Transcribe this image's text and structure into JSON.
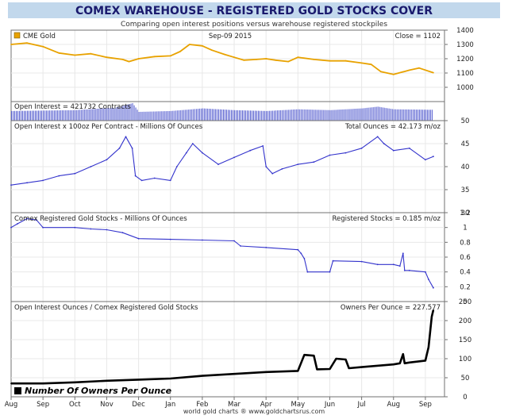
{
  "title": "COMEX WAREHOUSE - REGISTERED GOLD STOCKS COVER",
  "subtitle": "Comparing open interest positions versus warehouse registered stockpiles",
  "footer": "world gold charts ® www.goldchartsrus.com",
  "x_axis": {
    "labels": [
      "Aug",
      "Sep",
      "Oct",
      "Nov",
      "Dec",
      "Jan",
      "Feb",
      "Mar",
      "Apr",
      "May",
      "Jun",
      "Jul",
      "Aug",
      "Sep"
    ]
  },
  "colors": {
    "title_bar": "#c2d8ec",
    "title_text": "#1a1a6e",
    "gold_line": "#e8a200",
    "oi_bars": "#3a44c8",
    "blue_line": "#3333cc",
    "owners_line": "#000000",
    "grid": "#e8e8e8",
    "frame": "#707070"
  },
  "chart_data": [
    {
      "id": "gold",
      "type": "line",
      "legend": "CME Gold",
      "date_label": "Sep-09 2015",
      "readout": "Close = 1102",
      "ylim": [
        900,
        1400
      ],
      "yticks": [
        1000,
        1100,
        1200,
        1300,
        1400
      ],
      "y_tick_labels": [
        "1000",
        "1100",
        "1200",
        "1300",
        "1400"
      ],
      "x": [
        "Aug",
        "Sep",
        "Oct",
        "Nov",
        "Dec",
        "Jan",
        "Feb",
        "Mar",
        "Apr",
        "May",
        "Jun",
        "Jul",
        "Aug",
        "Sep"
      ],
      "points": [
        [
          0,
          1300
        ],
        [
          0.5,
          1310
        ],
        [
          1,
          1285
        ],
        [
          1.5,
          1240
        ],
        [
          2,
          1225
        ],
        [
          2.5,
          1235
        ],
        [
          3,
          1210
        ],
        [
          3.5,
          1195
        ],
        [
          3.7,
          1180
        ],
        [
          4,
          1200
        ],
        [
          4.5,
          1215
        ],
        [
          5,
          1220
        ],
        [
          5.3,
          1250
        ],
        [
          5.6,
          1300
        ],
        [
          6,
          1290
        ],
        [
          6.3,
          1260
        ],
        [
          6.7,
          1230
        ],
        [
          7,
          1210
        ],
        [
          7.3,
          1190
        ],
        [
          7.7,
          1195
        ],
        [
          8,
          1200
        ],
        [
          8.3,
          1190
        ],
        [
          8.7,
          1180
        ],
        [
          9,
          1210
        ],
        [
          9.5,
          1195
        ],
        [
          10,
          1185
        ],
        [
          10.5,
          1185
        ],
        [
          11,
          1170
        ],
        [
          11.3,
          1160
        ],
        [
          11.6,
          1110
        ],
        [
          12,
          1090
        ],
        [
          12.5,
          1120
        ],
        [
          12.8,
          1135
        ],
        [
          13.25,
          1102
        ]
      ]
    },
    {
      "id": "open_interest",
      "type": "bar",
      "readout": "Open Interest = 421732 Contracts",
      "x": [
        "Aug",
        "Sep",
        "Oct",
        "Nov",
        "Dec",
        "Jan",
        "Feb",
        "Mar",
        "Apr",
        "May",
        "Jun",
        "Jul",
        "Aug",
        "Sep"
      ],
      "points": [
        [
          0,
          0.55
        ],
        [
          2,
          0.6
        ],
        [
          3.3,
          0.75
        ],
        [
          3.8,
          1.0
        ],
        [
          4,
          0.5
        ],
        [
          5,
          0.55
        ],
        [
          6,
          0.7
        ],
        [
          7,
          0.6
        ],
        [
          8,
          0.55
        ],
        [
          9,
          0.65
        ],
        [
          10,
          0.6
        ],
        [
          11,
          0.7
        ],
        [
          11.5,
          0.8
        ],
        [
          12,
          0.65
        ],
        [
          13.25,
          0.62
        ]
      ]
    },
    {
      "id": "oi_ounces",
      "type": "line",
      "readout_left": "Open Interest x 100oz Per Contract - Millions Of Ounces",
      "readout_right": "Total Ounces = 42.173 m/oz",
      "ylim": [
        30,
        50
      ],
      "yticks": [
        30,
        35,
        40,
        45,
        50
      ],
      "y_tick_labels": [
        "30",
        "35",
        "40",
        "45",
        "50"
      ],
      "x": [
        "Aug",
        "Sep",
        "Oct",
        "Nov",
        "Dec",
        "Jan",
        "Feb",
        "Mar",
        "Apr",
        "May",
        "Jun",
        "Jul",
        "Aug",
        "Sep"
      ],
      "points": [
        [
          0,
          36
        ],
        [
          0.5,
          36.5
        ],
        [
          1,
          37
        ],
        [
          1.5,
          38
        ],
        [
          2,
          38.5
        ],
        [
          2.5,
          40
        ],
        [
          3,
          41.5
        ],
        [
          3.4,
          44
        ],
        [
          3.6,
          46.5
        ],
        [
          3.8,
          44
        ],
        [
          3.9,
          38
        ],
        [
          4.1,
          37
        ],
        [
          4.5,
          37.5
        ],
        [
          5,
          37
        ],
        [
          5.2,
          40
        ],
        [
          5.5,
          43
        ],
        [
          5.7,
          45
        ],
        [
          6,
          43
        ],
        [
          6.5,
          40.5
        ],
        [
          7,
          42
        ],
        [
          7.5,
          43.5
        ],
        [
          7.9,
          44.5
        ],
        [
          8,
          40
        ],
        [
          8.2,
          38.5
        ],
        [
          8.5,
          39.5
        ],
        [
          9,
          40.5
        ],
        [
          9.5,
          41
        ],
        [
          10,
          42.5
        ],
        [
          10.5,
          43
        ],
        [
          11,
          44
        ],
        [
          11.5,
          46.5
        ],
        [
          11.7,
          45
        ],
        [
          12,
          43.5
        ],
        [
          12.5,
          44
        ],
        [
          13,
          41.5
        ],
        [
          13.25,
          42.2
        ]
      ]
    },
    {
      "id": "registered",
      "type": "line",
      "readout_left": "Comex Registered Gold Stocks - Millions Of Ounces",
      "readout_right": "Registered Stocks = 0.185 m/oz",
      "ylim": [
        0,
        1.2
      ],
      "yticks": [
        0,
        0.2,
        0.4,
        0.6,
        0.8,
        1.0,
        1.2
      ],
      "y_tick_labels": [
        "0",
        "0.2",
        "0.4",
        "0.6",
        "0.8",
        "1",
        "1.2"
      ],
      "x": [
        "Aug",
        "Sep",
        "Oct",
        "Nov",
        "Dec",
        "Jan",
        "Feb",
        "Mar",
        "Apr",
        "May",
        "Jun",
        "Jul",
        "Aug",
        "Sep"
      ],
      "points": [
        [
          0,
          1.0
        ],
        [
          0.2,
          1.05
        ],
        [
          0.5,
          1.12
        ],
        [
          0.8,
          1.1
        ],
        [
          1,
          1.0
        ],
        [
          2,
          1.0
        ],
        [
          2.5,
          0.98
        ],
        [
          3,
          0.97
        ],
        [
          3.5,
          0.93
        ],
        [
          4,
          0.85
        ],
        [
          5,
          0.84
        ],
        [
          6,
          0.83
        ],
        [
          7,
          0.82
        ],
        [
          7.2,
          0.75
        ],
        [
          8,
          0.73
        ],
        [
          9,
          0.7
        ],
        [
          9.1,
          0.65
        ],
        [
          9.2,
          0.58
        ],
        [
          9.3,
          0.4
        ],
        [
          10,
          0.4
        ],
        [
          10.1,
          0.55
        ],
        [
          11,
          0.54
        ],
        [
          11.5,
          0.5
        ],
        [
          12,
          0.5
        ],
        [
          12.2,
          0.48
        ],
        [
          12.3,
          0.65
        ],
        [
          12.35,
          0.42
        ],
        [
          12.5,
          0.42
        ],
        [
          13,
          0.4
        ],
        [
          13.1,
          0.3
        ],
        [
          13.25,
          0.185
        ]
      ]
    },
    {
      "id": "owners",
      "type": "line",
      "readout_left": "Open Interest Ounces / Comex Registered Gold Stocks",
      "readout_right": "Owners Per Ounce = 227.577",
      "legend": "Number Of Owners Per Ounce",
      "ylim": [
        0,
        250
      ],
      "yticks": [
        0,
        50,
        100,
        150,
        200,
        250
      ],
      "y_tick_labels": [
        "0",
        "50",
        "100",
        "150",
        "200",
        "250"
      ],
      "x": [
        "Aug",
        "Sep",
        "Oct",
        "Nov",
        "Dec",
        "Jan",
        "Feb",
        "Mar",
        "Apr",
        "May",
        "Jun",
        "Jul",
        "Aug",
        "Sep"
      ],
      "points": [
        [
          0,
          35
        ],
        [
          1,
          35
        ],
        [
          2,
          38
        ],
        [
          3,
          42
        ],
        [
          4,
          45
        ],
        [
          5,
          48
        ],
        [
          6,
          55
        ],
        [
          7,
          60
        ],
        [
          8,
          65
        ],
        [
          9,
          68
        ],
        [
          9.2,
          110
        ],
        [
          9.5,
          108
        ],
        [
          9.6,
          72
        ],
        [
          10,
          73
        ],
        [
          10.2,
          100
        ],
        [
          10.5,
          98
        ],
        [
          10.6,
          75
        ],
        [
          11,
          78
        ],
        [
          12,
          85
        ],
        [
          12.2,
          88
        ],
        [
          12.3,
          112
        ],
        [
          12.35,
          88
        ],
        [
          12.5,
          90
        ],
        [
          13,
          95
        ],
        [
          13.1,
          130
        ],
        [
          13.2,
          210
        ],
        [
          13.25,
          227.577
        ]
      ]
    }
  ]
}
